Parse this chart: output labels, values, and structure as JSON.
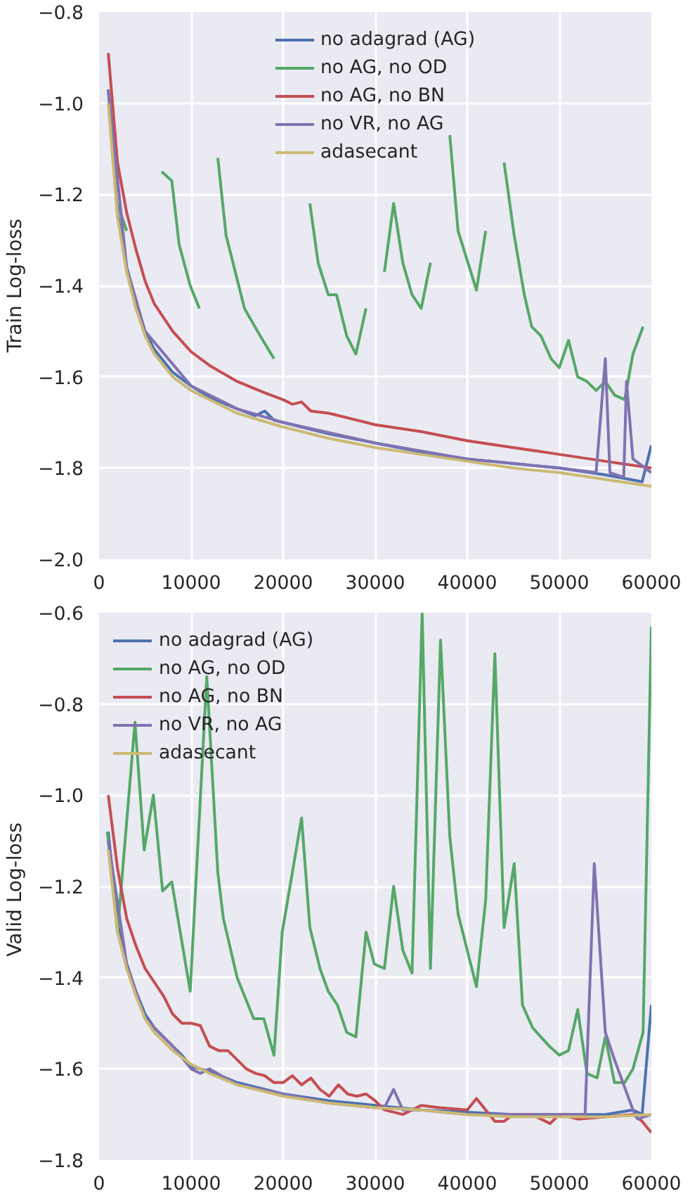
{
  "chart_data": [
    {
      "type": "line",
      "ylabel": "Train Log-loss",
      "xlim": [
        0,
        60000
      ],
      "xticks": [
        0,
        10000,
        20000,
        30000,
        40000,
        50000,
        60000
      ],
      "ylim": [
        -2.0,
        -0.8
      ],
      "yticks": [
        {
          "value": -2.0,
          "label": "−2.0"
        },
        {
          "value": -1.8,
          "label": "−1.8"
        },
        {
          "value": -1.6,
          "label": "−1.6"
        },
        {
          "value": -1.4,
          "label": "−1.4"
        },
        {
          "value": -1.2,
          "label": "−1.2"
        },
        {
          "value": -1.0,
          "label": "−1.0"
        },
        {
          "value": -0.8,
          "label": "−0.8"
        }
      ],
      "grid": true,
      "legend": "top",
      "series": [
        {
          "name": "no adagrad (AG)",
          "color": "#4c72b0",
          "x": [
            1000,
            2000,
            3000,
            4000,
            5000,
            6000,
            8000,
            10000,
            12000,
            15000,
            17000,
            18000,
            19000,
            20000,
            25000,
            30000,
            35000,
            40000,
            45000,
            50000,
            55000,
            59000,
            60000
          ],
          "values": [
            -0.97,
            -1.24,
            -1.36,
            -1.44,
            -1.5,
            -1.54,
            -1.59,
            -1.62,
            -1.645,
            -1.67,
            -1.685,
            -1.675,
            -1.695,
            -1.7,
            -1.725,
            -1.745,
            -1.765,
            -1.78,
            -1.79,
            -1.8,
            -1.815,
            -1.83,
            -1.75
          ]
        },
        {
          "name": "no AG, no OD",
          "color": "#55a868",
          "x": [
            2000,
            3000,
            5000,
            6800,
            7900,
            8700,
            9900,
            10900,
            12000,
            12900,
            13800,
            15800,
            17500,
            19000,
            21000,
            22900,
            23800,
            24900,
            25800,
            26900,
            27900,
            29000,
            30000,
            31000,
            32000,
            33000,
            34000,
            35000,
            36000,
            37000,
            38100,
            39000,
            41000,
            42000,
            43000,
            44000,
            45100,
            46200,
            47000,
            48000,
            49100,
            50000,
            51000,
            52000,
            53000,
            54000,
            55000,
            56000,
            57100,
            58000,
            59100
          ],
          "values": [
            -1.22,
            -1.28,
            null,
            -1.15,
            -1.17,
            -1.31,
            -1.4,
            -1.45,
            null,
            -1.12,
            -1.29,
            -1.45,
            -1.51,
            -1.56,
            null,
            -1.22,
            -1.35,
            -1.42,
            -1.42,
            -1.51,
            -1.55,
            -1.45,
            null,
            -1.37,
            -1.22,
            -1.35,
            -1.42,
            -1.45,
            -1.35,
            null,
            -1.07,
            -1.28,
            -1.41,
            -1.28,
            null,
            -1.13,
            -1.29,
            -1.42,
            -1.49,
            -1.51,
            -1.56,
            -1.58,
            -1.52,
            -1.6,
            -1.61,
            -1.63,
            -1.61,
            -1.64,
            -1.65,
            -1.55,
            -1.49
          ]
        },
        {
          "name": "no AG, no BN",
          "color": "#c44e52",
          "x": [
            1000,
            2000,
            3000,
            4000,
            5000,
            6000,
            8000,
            10000,
            12000,
            15000,
            18000,
            20000,
            21000,
            22000,
            23000,
            25000,
            30000,
            35000,
            40000,
            45000,
            50000,
            55000,
            60000
          ],
          "values": [
            -0.89,
            -1.13,
            -1.24,
            -1.32,
            -1.39,
            -1.44,
            -1.5,
            -1.545,
            -1.575,
            -1.61,
            -1.635,
            -1.65,
            -1.66,
            -1.655,
            -1.675,
            -1.68,
            -1.705,
            -1.72,
            -1.74,
            -1.755,
            -1.77,
            -1.785,
            -1.8
          ]
        },
        {
          "name": "no VR, no AG",
          "color": "#8172b2",
          "x": [
            1000,
            3000,
            5000,
            10000,
            15000,
            20000,
            30000,
            40000,
            50000,
            54000,
            55000,
            55500,
            57000,
            57300,
            58000,
            60000
          ],
          "values": [
            -0.97,
            -1.36,
            -1.5,
            -1.62,
            -1.67,
            -1.7,
            -1.745,
            -1.78,
            -1.8,
            -1.81,
            -1.56,
            -1.81,
            -1.82,
            -1.61,
            -1.78,
            -1.81
          ]
        },
        {
          "name": "adasecant",
          "color": "#ccb974",
          "x": [
            1000,
            2000,
            3000,
            4000,
            5000,
            6000,
            8000,
            10000,
            12000,
            15000,
            20000,
            25000,
            30000,
            35000,
            40000,
            45000,
            50000,
            55000,
            60000
          ],
          "values": [
            -1.0,
            -1.25,
            -1.37,
            -1.45,
            -1.51,
            -1.55,
            -1.6,
            -1.63,
            -1.65,
            -1.68,
            -1.71,
            -1.735,
            -1.755,
            -1.77,
            -1.785,
            -1.8,
            -1.81,
            -1.825,
            -1.84
          ]
        }
      ]
    },
    {
      "type": "line",
      "ylabel": "Valid  Log-loss",
      "xlim": [
        0,
        60000
      ],
      "xticks": [
        0,
        10000,
        20000,
        30000,
        40000,
        50000,
        60000
      ],
      "ylim": [
        -1.8,
        -0.6
      ],
      "yticks": [
        {
          "value": -1.8,
          "label": "−1.8"
        },
        {
          "value": -1.6,
          "label": "−1.6"
        },
        {
          "value": -1.4,
          "label": "−1.4"
        },
        {
          "value": -1.2,
          "label": "−1.2"
        },
        {
          "value": -1.0,
          "label": "−1.0"
        },
        {
          "value": -0.8,
          "label": "−0.8"
        },
        {
          "value": -0.6,
          "label": "−0.6"
        }
      ],
      "grid": true,
      "legend": "top left",
      "series": [
        {
          "name": "no adagrad (AG)",
          "color": "#4c72b0",
          "x": [
            1000,
            2000,
            3000,
            4000,
            5000,
            6000,
            8000,
            9000,
            10000,
            12000,
            15000,
            20000,
            25000,
            30000,
            35000,
            40000,
            45000,
            50000,
            55000,
            58000,
            59000,
            60000
          ],
          "values": [
            -1.08,
            -1.28,
            -1.37,
            -1.43,
            -1.48,
            -1.51,
            -1.55,
            -1.57,
            -1.595,
            -1.605,
            -1.63,
            -1.655,
            -1.67,
            -1.68,
            -1.69,
            -1.695,
            -1.7,
            -1.7,
            -1.7,
            -1.69,
            -1.7,
            -1.46
          ]
        },
        {
          "name": "no AG, no OD",
          "color": "#55a868",
          "x": [
            900,
            2000,
            3900,
            4900,
            5900,
            6900,
            7900,
            9900,
            11700,
            12900,
            13500,
            15000,
            16800,
            17900,
            19000,
            19900,
            22000,
            22900,
            24000,
            24900,
            25900,
            26900,
            27900,
            29000,
            29900,
            31000,
            32000,
            33000,
            34000,
            35100,
            36000,
            37100,
            38100,
            39000,
            41000,
            42000,
            43000,
            44000,
            45100,
            46000,
            47100,
            48900,
            50000,
            51000,
            52000,
            53000,
            54100,
            55000,
            56000,
            57100,
            58000,
            59100,
            60000
          ],
          "values": [
            -1.08,
            -1.3,
            -0.84,
            -1.12,
            -1.0,
            -1.21,
            -1.19,
            -1.43,
            -0.74,
            -1.17,
            -1.27,
            -1.4,
            -1.49,
            -1.49,
            -1.57,
            -1.3,
            -1.05,
            -1.29,
            -1.38,
            -1.43,
            -1.46,
            -1.52,
            -1.53,
            -1.3,
            -1.37,
            -1.38,
            -1.2,
            -1.34,
            -1.39,
            -0.6,
            -1.38,
            -0.66,
            -1.09,
            -1.26,
            -1.42,
            -1.23,
            -0.69,
            -1.29,
            -1.15,
            -1.46,
            -1.51,
            -1.55,
            -1.57,
            -1.56,
            -1.47,
            -1.61,
            -1.62,
            -1.53,
            -1.63,
            -1.63,
            -1.6,
            -1.52,
            -0.63
          ]
        },
        {
          "name": "no AG, no BN",
          "color": "#c44e52",
          "x": [
            1000,
            2000,
            3000,
            4000,
            5000,
            6000,
            7000,
            8000,
            9000,
            10000,
            11000,
            12000,
            13000,
            14000,
            15000,
            16000,
            17000,
            18000,
            19000,
            20000,
            21000,
            22000,
            23000,
            24000,
            25000,
            26000,
            27000,
            28000,
            29000,
            30000,
            31000,
            33000,
            35000,
            37000,
            40000,
            41000,
            42000,
            43000,
            44000,
            45000,
            47000,
            49000,
            50000,
            52000,
            55000,
            58000,
            59000,
            60000
          ],
          "values": [
            -1.0,
            -1.16,
            -1.27,
            -1.33,
            -1.38,
            -1.41,
            -1.44,
            -1.48,
            -1.5,
            -1.5,
            -1.505,
            -1.55,
            -1.56,
            -1.56,
            -1.58,
            -1.6,
            -1.61,
            -1.615,
            -1.63,
            -1.63,
            -1.615,
            -1.635,
            -1.62,
            -1.645,
            -1.66,
            -1.635,
            -1.655,
            -1.66,
            -1.655,
            -1.67,
            -1.69,
            -1.7,
            -1.68,
            -1.685,
            -1.69,
            -1.665,
            -1.69,
            -1.715,
            -1.715,
            -1.7,
            -1.7,
            -1.72,
            -1.7,
            -1.71,
            -1.705,
            -1.7,
            -1.715,
            -1.74
          ]
        },
        {
          "name": "no VR, no AG",
          "color": "#8172b2",
          "x": [
            1000,
            3000,
            5000,
            8000,
            10000,
            11000,
            12000,
            15000,
            20000,
            25000,
            30000,
            31000,
            32000,
            33000,
            35000,
            40000,
            45000,
            50000,
            52800,
            53800,
            55000,
            56000,
            58000,
            58500,
            60000
          ],
          "values": [
            -1.1,
            -1.37,
            -1.49,
            -1.55,
            -1.6,
            -1.61,
            -1.6,
            -1.635,
            -1.655,
            -1.675,
            -1.685,
            -1.685,
            -1.645,
            -1.69,
            -1.69,
            -1.7,
            -1.7,
            -1.7,
            -1.7,
            -1.15,
            -1.52,
            -1.58,
            -1.69,
            -1.71,
            -1.7
          ]
        },
        {
          "name": "adasecant",
          "color": "#ccb974",
          "x": [
            1000,
            2000,
            3000,
            4000,
            5000,
            6000,
            8000,
            10000,
            12000,
            15000,
            20000,
            25000,
            30000,
            35000,
            40000,
            45000,
            50000,
            55000,
            60000
          ],
          "values": [
            -1.12,
            -1.3,
            -1.38,
            -1.44,
            -1.49,
            -1.52,
            -1.56,
            -1.59,
            -1.61,
            -1.635,
            -1.66,
            -1.675,
            -1.685,
            -1.69,
            -1.7,
            -1.705,
            -1.705,
            -1.705,
            -1.7
          ]
        }
      ]
    }
  ]
}
